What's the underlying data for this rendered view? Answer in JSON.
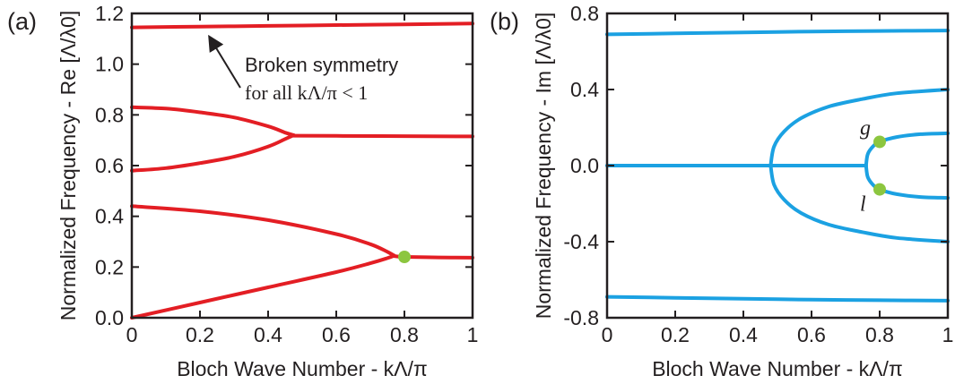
{
  "chart_data": [
    {
      "panel": "(a)",
      "type": "line",
      "xlabel": "Bloch Wave Number - kΛ/π",
      "ylabel": "Normalized Frequency - Re [Λ/λ0]",
      "xlim": [
        0,
        1
      ],
      "ylim": [
        0,
        1.2
      ],
      "xticks": [
        "0",
        "0.2",
        "0.4",
        "0.6",
        "0.8",
        "1"
      ],
      "yticks": [
        "0.0",
        "0.2",
        "0.4",
        "0.6",
        "0.8",
        "1.0",
        "1.2"
      ],
      "line_color": "#e31e24",
      "series": [
        {
          "x": [
            0,
            0.2,
            0.4,
            0.6,
            0.8,
            1
          ],
          "y": [
            1.145,
            1.148,
            1.151,
            1.154,
            1.157,
            1.16
          ]
        },
        {
          "x": [
            0,
            0.1,
            0.2,
            0.3,
            0.4,
            0.45,
            0.475
          ],
          "y": [
            0.83,
            0.825,
            0.81,
            0.79,
            0.755,
            0.73,
            0.72
          ]
        },
        {
          "x": [
            0,
            0.1,
            0.2,
            0.3,
            0.4,
            0.45,
            0.475
          ],
          "y": [
            0.58,
            0.59,
            0.61,
            0.635,
            0.675,
            0.705,
            0.72
          ]
        },
        {
          "x": [
            0.475,
            0.6,
            0.8,
            1
          ],
          "y": [
            0.718,
            0.717,
            0.716,
            0.715
          ]
        },
        {
          "x": [
            0,
            0.2,
            0.4,
            0.6,
            0.7,
            0.75,
            0.77
          ],
          "y": [
            0.44,
            0.42,
            0.385,
            0.33,
            0.29,
            0.26,
            0.245
          ]
        },
        {
          "x": [
            0,
            0.2,
            0.4,
            0.6,
            0.7,
            0.75,
            0.77
          ],
          "y": [
            0.0,
            0.06,
            0.12,
            0.18,
            0.215,
            0.235,
            0.245
          ]
        },
        {
          "x": [
            0.77,
            0.8,
            0.9,
            1
          ],
          "y": [
            0.243,
            0.24,
            0.238,
            0.237
          ]
        }
      ],
      "markers": [
        {
          "x": 0.8,
          "y": 0.24,
          "color": "#8cc63f"
        }
      ],
      "annotation": {
        "text_line1": "Broken symmetry",
        "text_line2": "for all kΛ/π < 1",
        "points_to": {
          "x": 0.48,
          "y": 1.15
        }
      }
    },
    {
      "panel": "(b)",
      "type": "line",
      "xlabel": "Bloch Wave Number - kΛ/π",
      "ylabel": "Normalized Frequency - Im [Λ/λ0]",
      "xlim": [
        0,
        1
      ],
      "ylim": [
        -0.8,
        0.8
      ],
      "xticks": [
        "0",
        "0.2",
        "0.4",
        "0.6",
        "0.8",
        "1"
      ],
      "yticks": [
        "-0.8",
        "-0.4",
        "0.0",
        "0.4",
        "0.8"
      ],
      "line_color": "#1ba1e2",
      "series": [
        {
          "x": [
            0,
            0.2,
            0.4,
            0.6,
            0.8,
            1
          ],
          "y": [
            0.69,
            0.695,
            0.7,
            0.705,
            0.708,
            0.71
          ]
        },
        {
          "x": [
            0,
            0.2,
            0.4,
            0.6,
            0.8,
            1
          ],
          "y": [
            -0.69,
            -0.695,
            -0.7,
            -0.705,
            -0.708,
            -0.71
          ]
        },
        {
          "x": [
            0,
            0.3,
            0.48,
            0.76
          ],
          "y": [
            0,
            0,
            0,
            0
          ]
        },
        {
          "x": [
            0.48,
            0.49,
            0.52,
            0.57,
            0.65,
            0.75,
            0.85,
            1
          ],
          "y": [
            0,
            0.1,
            0.18,
            0.25,
            0.31,
            0.35,
            0.38,
            0.4
          ]
        },
        {
          "x": [
            0.48,
            0.49,
            0.52,
            0.57,
            0.65,
            0.75,
            0.85,
            1
          ],
          "y": [
            0,
            -0.1,
            -0.18,
            -0.25,
            -0.31,
            -0.35,
            -0.38,
            -0.4
          ]
        },
        {
          "x": [
            0.76,
            0.765,
            0.78,
            0.8,
            0.85,
            0.92,
            1
          ],
          "y": [
            0,
            0.06,
            0.1,
            0.125,
            0.15,
            0.165,
            0.17
          ]
        },
        {
          "x": [
            0.76,
            0.765,
            0.78,
            0.8,
            0.85,
            0.92,
            1
          ],
          "y": [
            0,
            -0.06,
            -0.1,
            -0.125,
            -0.15,
            -0.165,
            -0.17
          ]
        }
      ],
      "markers": [
        {
          "x": 0.8,
          "y": 0.125,
          "color": "#8cc63f",
          "label": "g"
        },
        {
          "x": 0.8,
          "y": -0.125,
          "color": "#8cc63f",
          "label": "l"
        }
      ]
    }
  ]
}
